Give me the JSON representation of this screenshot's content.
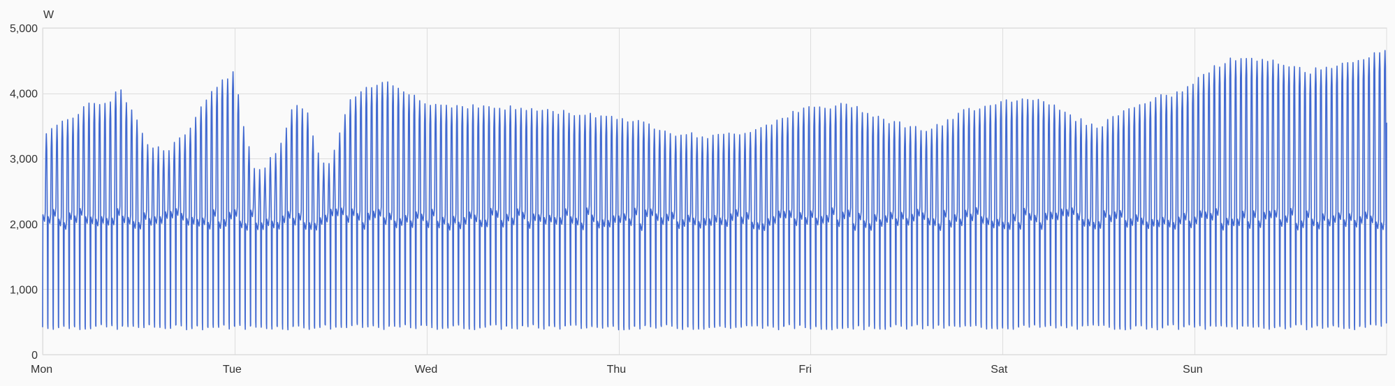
{
  "chart_data": {
    "type": "line",
    "unit_label": "W",
    "ylim": [
      0,
      5000
    ],
    "y_ticks": [
      {
        "value": 0,
        "label": "0"
      },
      {
        "value": 1000,
        "label": "1,000"
      },
      {
        "value": 2000,
        "label": "2,000"
      },
      {
        "value": 3000,
        "label": "3,000"
      },
      {
        "value": 4000,
        "label": "4,000"
      },
      {
        "value": 5000,
        "label": "5,000"
      }
    ],
    "xlim_days": [
      0,
      7
    ],
    "x_ticks": [
      {
        "value": 0,
        "label": "Mon"
      },
      {
        "value": 1,
        "label": "Tue"
      },
      {
        "value": 2,
        "label": "Wed"
      },
      {
        "value": 3,
        "label": "Thu"
      },
      {
        "value": 4,
        "label": "Fri"
      },
      {
        "value": 5,
        "label": "Sat"
      },
      {
        "value": 6,
        "label": "Sun"
      }
    ],
    "grid": true,
    "legend": "none",
    "series": [
      {
        "color": "#4169d0",
        "cycle_minutes": 40,
        "trough_w": 420,
        "plateau_w": 2150,
        "peak_envelope": {
          "x_days": [
            0,
            0.15,
            0.25,
            0.35,
            0.4,
            0.45,
            0.5,
            0.55,
            0.65,
            0.75,
            0.85,
            0.95,
            1.0,
            1.05,
            1.1,
            1.15,
            1.25,
            1.3,
            1.37,
            1.45,
            1.5,
            1.6,
            1.7,
            1.8,
            1.9,
            2.0,
            2.5,
            3.0,
            3.2,
            3.3,
            3.5,
            3.7,
            3.9,
            4.0,
            4.1,
            4.2,
            4.4,
            4.6,
            4.7,
            4.8,
            5.0,
            5.2,
            5.3,
            5.4,
            5.5,
            5.6,
            5.8,
            5.9,
            6.0,
            6.1,
            6.2,
            6.4,
            6.6,
            6.8,
            7.0
          ],
          "y_w": [
            3400,
            3650,
            3850,
            3900,
            4150,
            3800,
            3600,
            3200,
            3150,
            3400,
            3900,
            4250,
            4350,
            3500,
            2900,
            2850,
            3300,
            3800,
            3800,
            2950,
            2950,
            3900,
            4100,
            4200,
            4050,
            3850,
            3780,
            3650,
            3500,
            3400,
            3350,
            3450,
            3700,
            3800,
            3800,
            3850,
            3600,
            3450,
            3550,
            3750,
            3900,
            3950,
            3750,
            3600,
            3500,
            3700,
            3950,
            4000,
            4200,
            4400,
            4550,
            4500,
            4350,
            4500,
            4650
          ]
        }
      }
    ]
  }
}
